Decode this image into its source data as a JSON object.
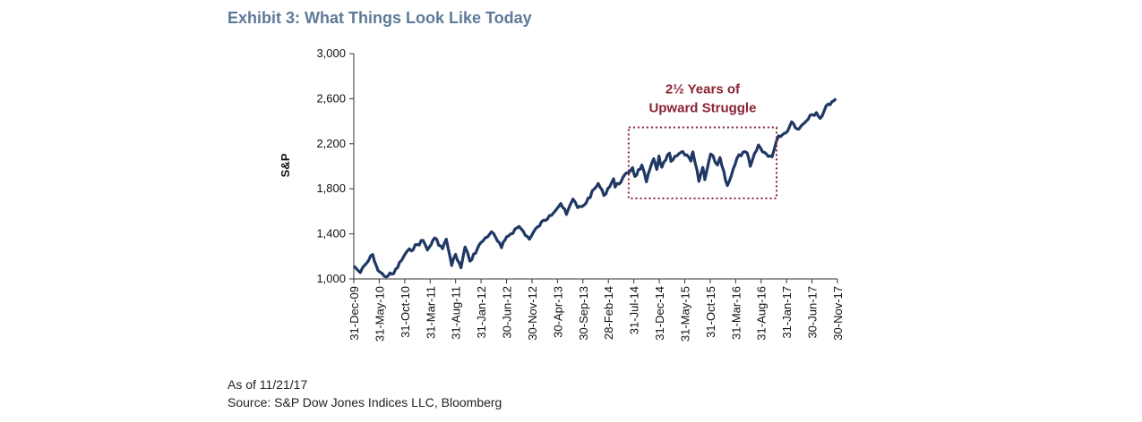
{
  "chart_data": {
    "type": "line",
    "title": "Exhibit 3: What Things Look Like Today",
    "ylabel": "S&P",
    "xlabel": "",
    "ylim": [
      1000,
      3000
    ],
    "yticks": [
      1000,
      1400,
      1800,
      2200,
      2600,
      3000
    ],
    "ytick_labels": [
      "1,000",
      "1,400",
      "1,800",
      "2,200",
      "2,600",
      "3,000"
    ],
    "xtick_labels": [
      "31-Dec-09",
      "31-May-10",
      "31-Oct-10",
      "31-Mar-11",
      "31-Aug-11",
      "31-Jan-12",
      "30-Jun-12",
      "30-Nov-12",
      "30-Apr-13",
      "30-Sep-13",
      "28-Feb-14",
      "31-Jul-14",
      "31-Dec-14",
      "31-May-15",
      "31-Oct-15",
      "31-Mar-16",
      "31-Aug-16",
      "31-Jan-17",
      "30-Jun-17",
      "30-Nov-17"
    ],
    "grid": false,
    "series": [
      {
        "color": "#1f3864",
        "x": [
          "2009-12-31",
          "2010-02-08",
          "2010-04-23",
          "2010-05-25",
          "2010-07-02",
          "2010-08-26",
          "2010-11-05",
          "2011-02-18",
          "2011-03-16",
          "2011-04-29",
          "2011-06-15",
          "2011-07-07",
          "2011-08-08",
          "2011-08-31",
          "2011-10-03",
          "2011-10-27",
          "2011-11-25",
          "2012-02-01",
          "2012-04-02",
          "2012-06-01",
          "2012-07-02",
          "2012-09-14",
          "2012-11-15",
          "2013-01-02",
          "2013-03-15",
          "2013-05-21",
          "2013-06-24",
          "2013-08-02",
          "2013-08-30",
          "2013-10-08",
          "2013-12-31",
          "2014-02-03",
          "2014-04-02",
          "2014-04-11",
          "2014-07-24",
          "2014-08-07",
          "2014-09-18",
          "2014-10-15",
          "2014-11-28",
          "2014-12-16",
          "2014-12-29",
          "2015-01-15",
          "2015-03-02",
          "2015-03-11",
          "2015-05-21",
          "2015-07-08",
          "2015-07-20",
          "2015-08-25",
          "2015-09-17",
          "2015-09-29",
          "2015-11-03",
          "2015-12-14",
          "2015-12-29",
          "2016-02-11",
          "2016-04-20",
          "2016-06-08",
          "2016-06-27",
          "2016-08-15",
          "2016-09-09",
          "2016-11-04",
          "2016-12-13",
          "2017-01-26",
          "2017-03-01",
          "2017-04-13",
          "2017-06-19",
          "2017-07-27",
          "2017-08-18",
          "2017-10-05",
          "2017-11-21"
        ],
        "y": [
          1115,
          1057,
          1217,
          1074,
          1023,
          1048,
          1225,
          1343,
          1257,
          1364,
          1268,
          1353,
          1119,
          1218,
          1099,
          1284,
          1158,
          1325,
          1419,
          1278,
          1375,
          1466,
          1353,
          1462,
          1563,
          1669,
          1573,
          1709,
          1633,
          1656,
          1848,
          1741,
          1890,
          1815,
          1988,
          1910,
          2011,
          1862,
          2067,
          1972,
          2091,
          1992,
          2117,
          2044,
          2131,
          2046,
          2128,
          1867,
          1990,
          1882,
          2109,
          2012,
          2078,
          1829,
          2102,
          2119,
          2000,
          2190,
          2127,
          2085,
          2271,
          2298,
          2395,
          2329,
          2453,
          2476,
          2425,
          2552,
          2600
        ]
      }
    ],
    "annotation": {
      "lines": [
        "2½ Years of",
        "Upward Struggle"
      ],
      "box": {
        "x_start": "2014-07-01",
        "x_end": "2016-12-01",
        "y_bottom": 1715,
        "y_top": 2345
      }
    }
  },
  "footnote": {
    "as_of": "As of 11/21/17",
    "source": "Source: S&P Dow Jones Indices LLC, Bloomberg"
  }
}
